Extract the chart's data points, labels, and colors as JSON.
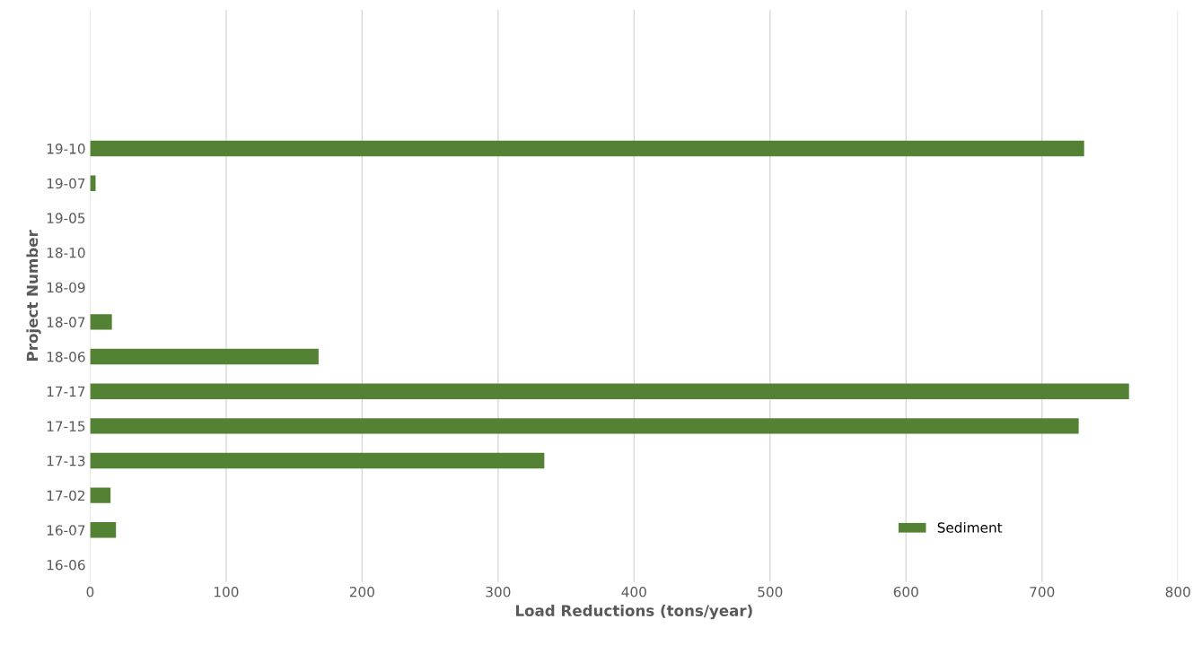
{
  "chart_data": {
    "type": "bar",
    "orientation": "horizontal",
    "xlabel": "Load Reductions (tons/year)",
    "ylabel": "Project Number",
    "categories": [
      "19-10",
      "19-07",
      "19-05",
      "18-10",
      "18-09",
      "18-07",
      "18-06",
      "17-17",
      "17-15",
      "17-13",
      "17-02",
      "16-07",
      "16-06"
    ],
    "series": [
      {
        "name": "Sediment",
        "color": "#548235",
        "values": [
          731,
          4,
          0,
          0,
          0,
          16,
          168,
          764,
          727,
          334,
          15,
          19,
          0
        ]
      }
    ],
    "xlim": [
      0,
      800
    ],
    "xticks": [
      0,
      100,
      200,
      300,
      400,
      500,
      600,
      700,
      800
    ],
    "grid": "x",
    "legend": "bottom right"
  }
}
